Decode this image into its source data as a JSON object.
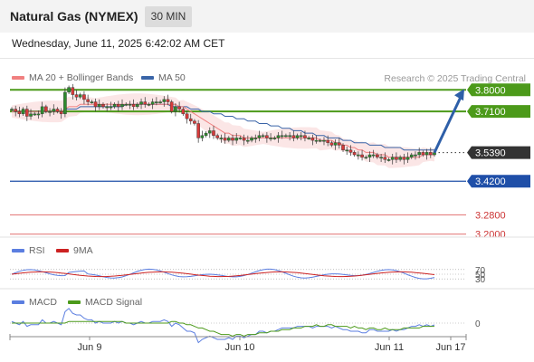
{
  "header": {
    "title": "Natural Gas (NYMEX)",
    "timeframe": "30 MIN",
    "datetime": "Wednesday, June 11, 2025 6:42:02 AM CET"
  },
  "legend": {
    "ma20_label": "MA 20 + Bollinger Bands",
    "ma50_label": "MA 50",
    "credit": "Research © 2025 Trading Central",
    "rsi_label": "RSI",
    "rsi_ma_label": "9MA",
    "macd_label": "MACD",
    "macd_signal_label": "MACD Signal"
  },
  "colors": {
    "resistance": "#4c9a1a",
    "current": "#333333",
    "support_pivot": "#1f4fa8",
    "support": "#e58080",
    "ma20": "#f08080",
    "ma50": "#3a65a8",
    "bands": "#fbe3e3",
    "rsi": "#5b7ee0",
    "rsi_ma": "#cc2222",
    "macd": "#5b7ee0",
    "macd_signal": "#4c9a1a",
    "arrow": "#2e5fa8",
    "candle_up": "#2e8b2e",
    "candle_down": "#d63a3a"
  },
  "chart_data": {
    "type": "candlestick",
    "instrument": "Natural Gas (NYMEX)",
    "timeframe": "30 MIN",
    "ylim": [
      3.15,
      3.88
    ],
    "x_ticks": [
      "Jun 9",
      "Jun 10",
      "Jun 11",
      "Jun 17"
    ],
    "levels": [
      {
        "value": 3.8,
        "label": "3.8000",
        "kind": "resistance"
      },
      {
        "value": 3.71,
        "label": "3.7100",
        "kind": "resistance"
      },
      {
        "value": 3.539,
        "label": "3.5390",
        "kind": "current"
      },
      {
        "value": 3.42,
        "label": "3.4200",
        "kind": "pivot"
      },
      {
        "value": 3.28,
        "label": "3.2800",
        "kind": "support"
      },
      {
        "value": 3.2,
        "label": "3.2000",
        "kind": "support"
      }
    ],
    "forecast_arrow": {
      "from": 3.539,
      "to": 3.8
    },
    "closes": [
      3.72,
      3.71,
      3.7,
      3.72,
      3.69,
      3.7,
      3.7,
      3.7,
      3.73,
      3.71,
      3.71,
      3.72,
      3.71,
      3.7,
      3.79,
      3.81,
      3.78,
      3.77,
      3.78,
      3.76,
      3.75,
      3.75,
      3.73,
      3.74,
      3.73,
      3.73,
      3.73,
      3.74,
      3.73,
      3.74,
      3.74,
      3.74,
      3.73,
      3.74,
      3.75,
      3.74,
      3.74,
      3.75,
      3.75,
      3.75,
      3.76,
      3.75,
      3.71,
      3.73,
      3.72,
      3.7,
      3.68,
      3.67,
      3.66,
      3.6,
      3.61,
      3.62,
      3.63,
      3.61,
      3.6,
      3.6,
      3.59,
      3.6,
      3.59,
      3.6,
      3.6,
      3.59,
      3.59,
      3.6,
      3.6,
      3.61,
      3.61,
      3.6,
      3.6,
      3.6,
      3.61,
      3.61,
      3.61,
      3.61,
      3.6,
      3.61,
      3.61,
      3.6,
      3.6,
      3.59,
      3.59,
      3.59,
      3.59,
      3.58,
      3.57,
      3.58,
      3.57,
      3.55,
      3.55,
      3.54,
      3.53,
      3.53,
      3.52,
      3.52,
      3.53,
      3.53,
      3.52,
      3.52,
      3.51,
      3.51,
      3.52,
      3.51,
      3.52,
      3.51,
      3.52,
      3.53,
      3.53,
      3.54,
      3.53,
      3.54,
      3.53,
      3.539
    ],
    "ma20": [
      3.71,
      3.71,
      3.71,
      3.71,
      3.71,
      3.71,
      3.71,
      3.71,
      3.71,
      3.71,
      3.71,
      3.71,
      3.71,
      3.71,
      3.72,
      3.73,
      3.73,
      3.73,
      3.74,
      3.74,
      3.74,
      3.74,
      3.74,
      3.74,
      3.74,
      3.74,
      3.74,
      3.74,
      3.74,
      3.74,
      3.74,
      3.74,
      3.74,
      3.74,
      3.74,
      3.74,
      3.74,
      3.74,
      3.74,
      3.74,
      3.74,
      3.74,
      3.74,
      3.74,
      3.73,
      3.73,
      3.72,
      3.71,
      3.7,
      3.69,
      3.68,
      3.67,
      3.66,
      3.65,
      3.64,
      3.63,
      3.62,
      3.62,
      3.61,
      3.61,
      3.61,
      3.6,
      3.6,
      3.6,
      3.6,
      3.6,
      3.6,
      3.6,
      3.6,
      3.6,
      3.6,
      3.6,
      3.6,
      3.6,
      3.6,
      3.6,
      3.6,
      3.6,
      3.6,
      3.6,
      3.6,
      3.59,
      3.59,
      3.59,
      3.59,
      3.58,
      3.58,
      3.57,
      3.57,
      3.56,
      3.56,
      3.55,
      3.55,
      3.54,
      3.54,
      3.54,
      3.53,
      3.53,
      3.53,
      3.52,
      3.52,
      3.52,
      3.52,
      3.52,
      3.52,
      3.52,
      3.52,
      3.52,
      3.53,
      3.53,
      3.53,
      3.53
    ],
    "ma50": [
      3.71,
      3.71,
      3.71,
      3.71,
      3.71,
      3.71,
      3.71,
      3.71,
      3.71,
      3.71,
      3.71,
      3.71,
      3.71,
      3.71,
      3.72,
      3.72,
      3.72,
      3.72,
      3.73,
      3.73,
      3.73,
      3.73,
      3.73,
      3.73,
      3.73,
      3.73,
      3.73,
      3.73,
      3.73,
      3.73,
      3.74,
      3.74,
      3.74,
      3.74,
      3.74,
      3.74,
      3.74,
      3.74,
      3.74,
      3.74,
      3.74,
      3.74,
      3.73,
      3.73,
      3.73,
      3.73,
      3.73,
      3.72,
      3.72,
      3.72,
      3.71,
      3.71,
      3.71,
      3.7,
      3.7,
      3.7,
      3.69,
      3.69,
      3.69,
      3.68,
      3.68,
      3.68,
      3.67,
      3.67,
      3.67,
      3.66,
      3.66,
      3.66,
      3.65,
      3.65,
      3.65,
      3.64,
      3.64,
      3.64,
      3.63,
      3.63,
      3.63,
      3.62,
      3.62,
      3.62,
      3.61,
      3.61,
      3.61,
      3.6,
      3.6,
      3.6,
      3.6,
      3.59,
      3.59,
      3.59,
      3.58,
      3.58,
      3.58,
      3.58,
      3.57,
      3.57,
      3.57,
      3.57,
      3.56,
      3.56,
      3.56,
      3.56,
      3.56,
      3.55,
      3.55,
      3.55,
      3.55,
      3.55,
      3.55,
      3.55,
      3.55,
      3.55
    ],
    "rsi": {
      "ylim": [
        0,
        100
      ],
      "levels": [
        {
          "value": 70,
          "label": "70"
        },
        {
          "value": 50,
          "label": "50"
        },
        {
          "value": 30,
          "label": "30"
        }
      ]
    },
    "macd": {
      "levels": [
        {
          "value": 0,
          "label": "0"
        }
      ]
    }
  }
}
